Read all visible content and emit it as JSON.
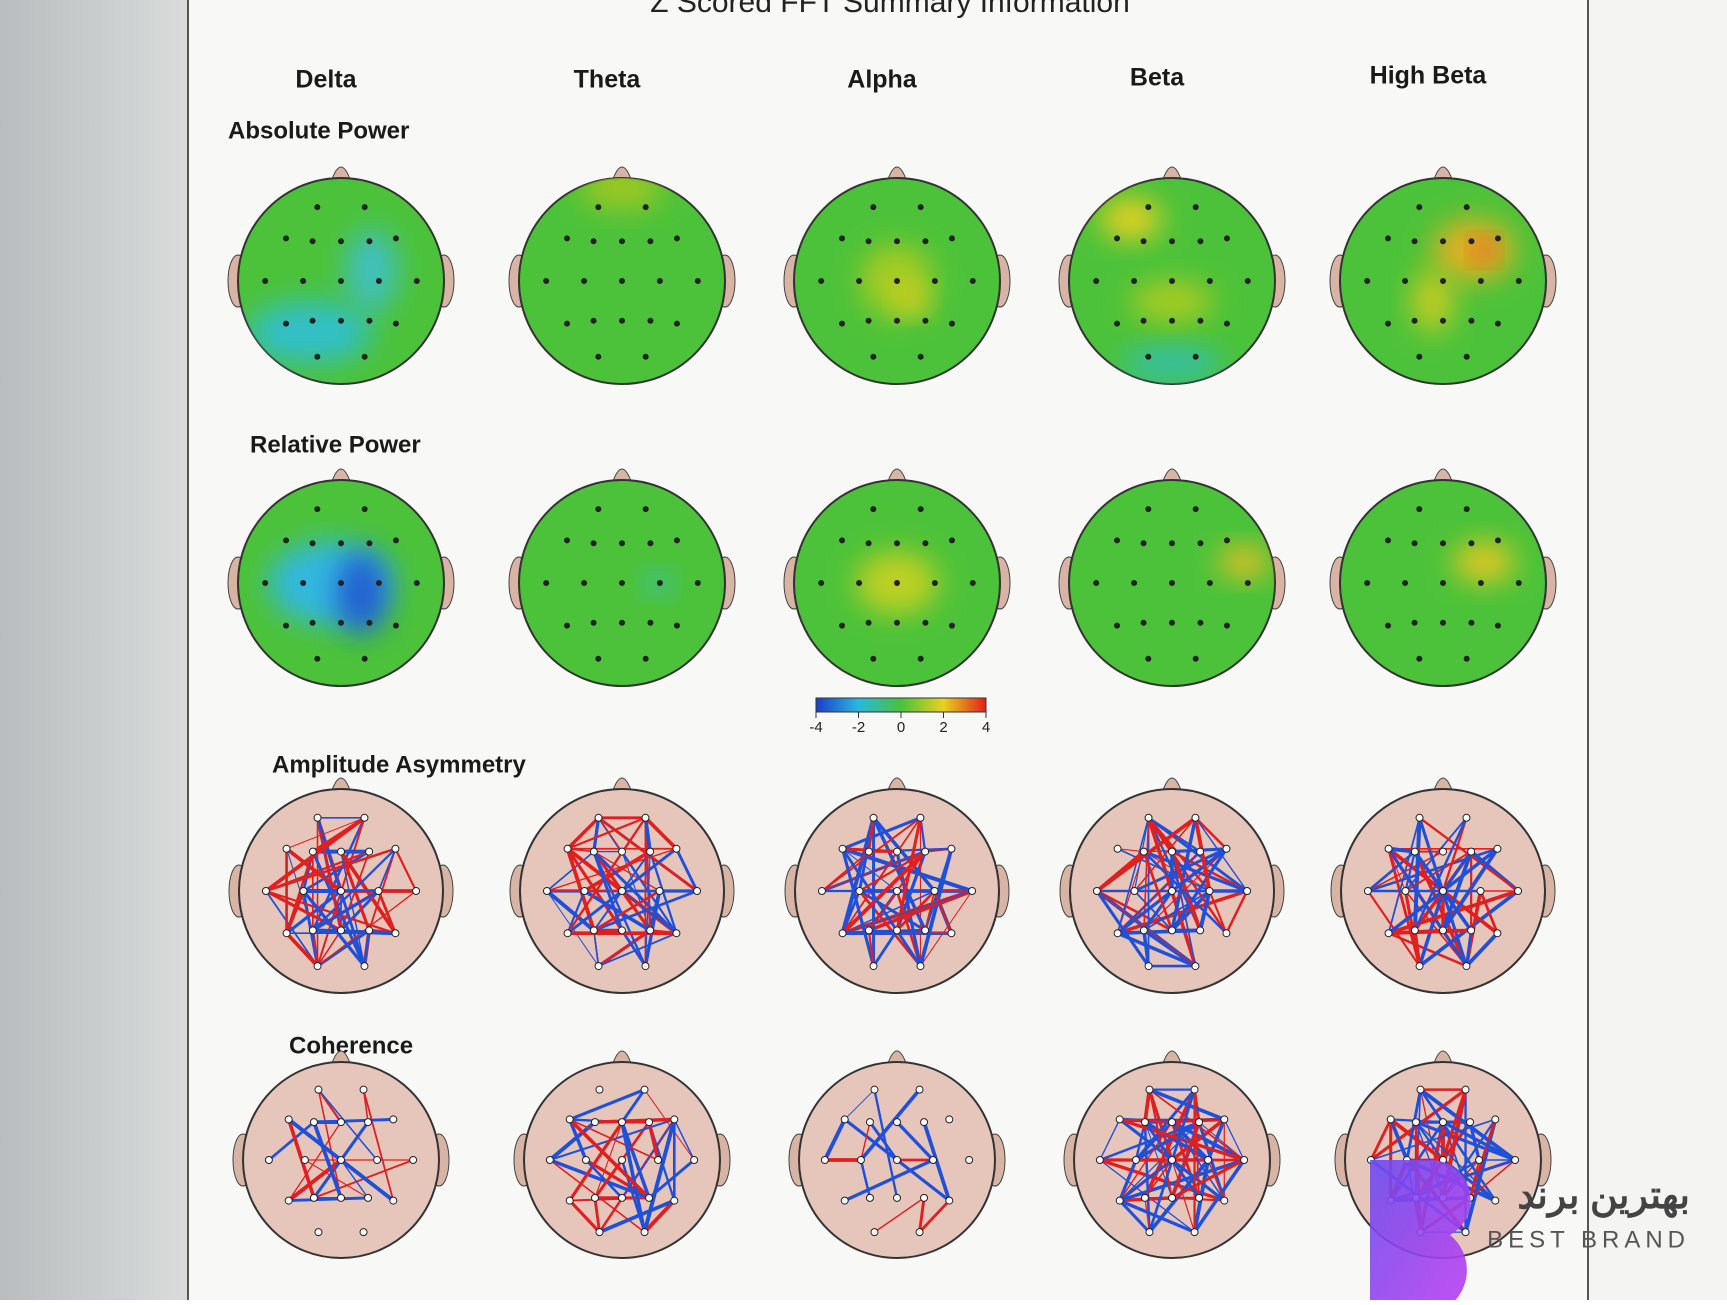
{
  "header": {
    "title": "Z Scored FFT Summary Information"
  },
  "columns": [
    "Delta",
    "Theta",
    "Alpha",
    "Beta",
    "High Beta"
  ],
  "rows": [
    "Absolute Power",
    "Relative Power",
    "Amplitude Asymmetry",
    "Coherence"
  ],
  "colorbar": {
    "lim": [
      -4,
      4
    ],
    "ticks": [
      -4,
      -2,
      0,
      2,
      4
    ]
  },
  "watermark": {
    "brand_fa": "بهترین برند",
    "brand_en": "BEST BRAND"
  }
}
